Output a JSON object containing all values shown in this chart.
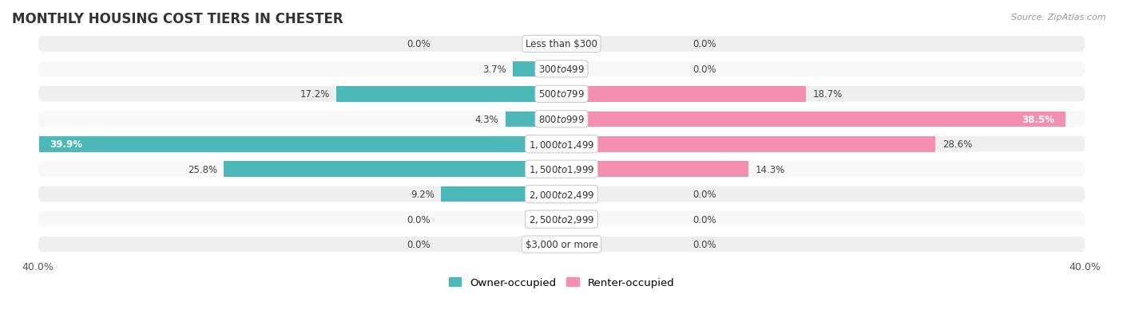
{
  "title": "MONTHLY HOUSING COST TIERS IN CHESTER",
  "source": "Source: ZipAtlas.com",
  "categories": [
    "Less than $300",
    "$300 to $499",
    "$500 to $799",
    "$800 to $999",
    "$1,000 to $1,499",
    "$1,500 to $1,999",
    "$2,000 to $2,499",
    "$2,500 to $2,999",
    "$3,000 or more"
  ],
  "owner_values": [
    0.0,
    3.7,
    17.2,
    4.3,
    39.9,
    25.8,
    9.2,
    0.0,
    0.0
  ],
  "renter_values": [
    0.0,
    0.0,
    18.7,
    38.5,
    28.6,
    14.3,
    0.0,
    0.0,
    0.0
  ],
  "owner_color": "#4db8b8",
  "renter_color": "#f48fb1",
  "row_bg_even": "#efefef",
  "row_bg_odd": "#f8f8f8",
  "xlim_left": -42,
  "xlim_right": 42,
  "bar_max": 40.0,
  "owner_label": "Owner-occupied",
  "renter_label": "Renter-occupied",
  "title_fontsize": 12,
  "source_fontsize": 8,
  "label_fontsize": 8.5,
  "cat_fontsize": 8.5,
  "bar_height": 0.62,
  "figsize": [
    14.06,
    4.14
  ],
  "dpi": 100,
  "background_color": "#ffffff"
}
